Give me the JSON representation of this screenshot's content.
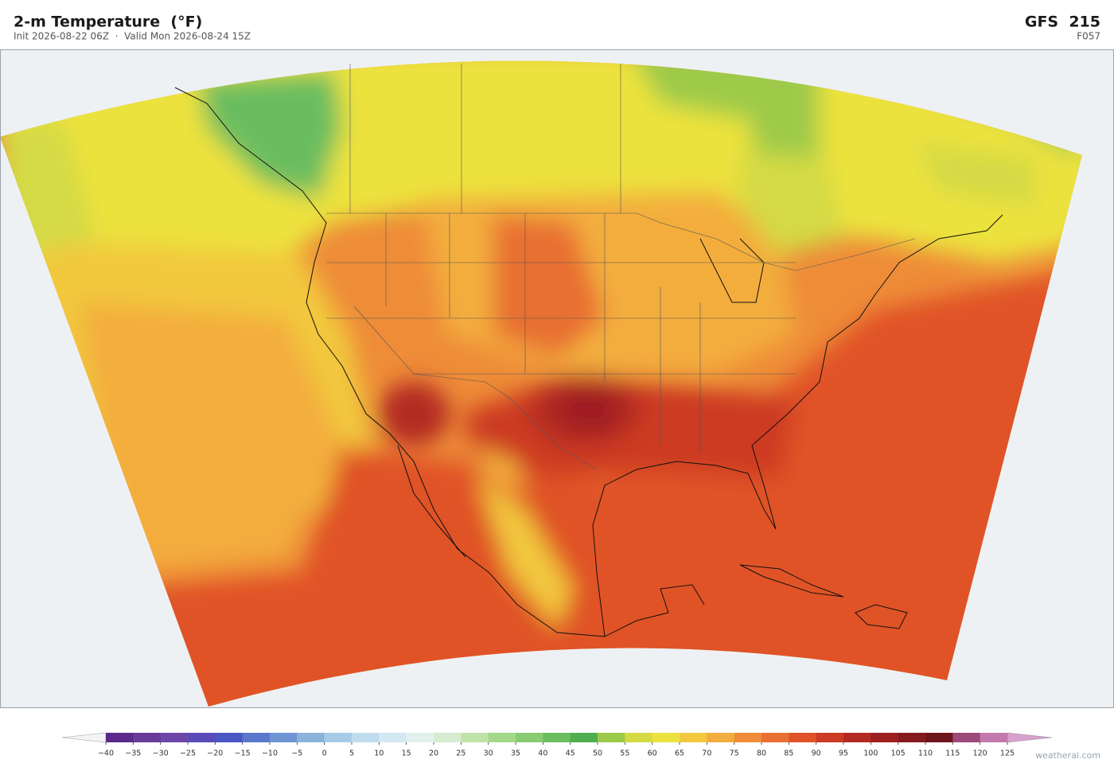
{
  "header": {
    "title": "2-m Temperature  (°F)",
    "subtitle": "Init 2026-08-22 06Z  ·  Valid Mon 2026-08-24 15Z",
    "model": "GFS  215",
    "forecast_hour": "F057"
  },
  "colorbar": {
    "ticks": [
      {
        "value": -40,
        "label": "−40"
      },
      {
        "value": -35,
        "label": "−35"
      },
      {
        "value": -30,
        "label": "−30"
      },
      {
        "value": -25,
        "label": "−25"
      },
      {
        "value": -20,
        "label": "−20"
      },
      {
        "value": -15,
        "label": "−15"
      },
      {
        "value": -10,
        "label": "−10"
      },
      {
        "value": -5,
        "label": "−5"
      },
      0,
      5,
      10,
      15,
      20,
      25,
      30,
      35,
      40,
      45,
      50,
      55,
      60,
      65,
      70,
      75,
      80,
      85,
      90,
      95,
      100,
      105,
      110,
      115,
      120,
      125
    ],
    "colors": [
      "#5b2a8c",
      "#6a3a9a",
      "#6e48a8",
      "#5a4bb8",
      "#4a56c4",
      "#5a78cc",
      "#6f95d4",
      "#8bb3dc",
      "#a7cbe6",
      "#bfdcee",
      "#d2e8f2",
      "#e2f1ee",
      "#d6ecd0",
      "#bfe3a8",
      "#a3d889",
      "#88cc73",
      "#6bbd5f",
      "#4fae4f",
      "#9dca4a",
      "#d4da44",
      "#ece23e",
      "#f2c83e",
      "#f3ad3e",
      "#ee8c38",
      "#e87033",
      "#e05228",
      "#cc3a24",
      "#b32a22",
      "#9e1f20",
      "#851a1e",
      "#6e141c",
      "#9c4a7a",
      "#c27aae"
    ],
    "under_color": "#f4f4f6",
    "over_color": "#d8a0cc"
  },
  "footer": {
    "credit": "weatherai.com"
  }
}
